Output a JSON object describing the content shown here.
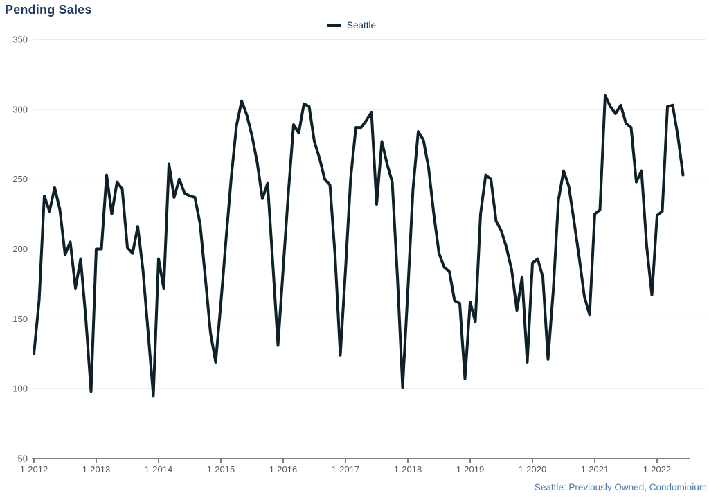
{
  "header": {
    "title": "Pending Sales"
  },
  "legend": {
    "label": "Seattle"
  },
  "footer": {
    "note": "Seattle: Previously Owned, Condominium"
  },
  "colors": {
    "line": "#0e2129",
    "title_text": "#1d3c64",
    "legend_text": "#17375e",
    "footnote_text": "#4379b5",
    "axis_text": "#595959",
    "gridline": "#d9d9d9",
    "axis_line": "#7f7f7f"
  },
  "chart_data": {
    "type": "line",
    "title": "Pending Sales",
    "xlabel": "",
    "ylabel": "",
    "ylim": [
      50,
      350
    ],
    "y_ticks": [
      50,
      100,
      150,
      200,
      250,
      300,
      350
    ],
    "grid": "horizontal",
    "legend_position": "top-center",
    "legend_entries": [
      "Seattle"
    ],
    "footnote": "Seattle: Previously Owned, Condominium",
    "x_start": "1-2012",
    "x_end": "6-2022",
    "x_tick_labels": [
      "1-2012",
      "1-2013",
      "1-2014",
      "1-2015",
      "1-2016",
      "1-2017",
      "1-2018",
      "1-2019",
      "1-2020",
      "1-2021",
      "1-2022"
    ],
    "months_per_tick": 12,
    "series": [
      {
        "name": "Seattle",
        "monthly_values": [
          125,
          163,
          238,
          227,
          244,
          228,
          196,
          205,
          172,
          193,
          150,
          98,
          200,
          200,
          253,
          225,
          248,
          243,
          201,
          197,
          216,
          185,
          140,
          95,
          193,
          172,
          261,
          237,
          250,
          240,
          238,
          237,
          218,
          180,
          140,
          119,
          161,
          207,
          251,
          288,
          306,
          296,
          281,
          262,
          236,
          247,
          190,
          131,
          186,
          240,
          289,
          283,
          304,
          302,
          277,
          265,
          250,
          246,
          195,
          124,
          185,
          251,
          287,
          287,
          292,
          298,
          232,
          277,
          261,
          248,
          180,
          101,
          170,
          243,
          284,
          278,
          258,
          225,
          197,
          187,
          184,
          163,
          161,
          107,
          162,
          148,
          225,
          253,
          250,
          220,
          213,
          201,
          185,
          156,
          180,
          119,
          190,
          193,
          180,
          121,
          170,
          235,
          256,
          245,
          220,
          194,
          166,
          153,
          225,
          228,
          310,
          302,
          297,
          303,
          290,
          287,
          248,
          256,
          202,
          167,
          224,
          227,
          302,
          303,
          281,
          253
        ]
      }
    ]
  }
}
